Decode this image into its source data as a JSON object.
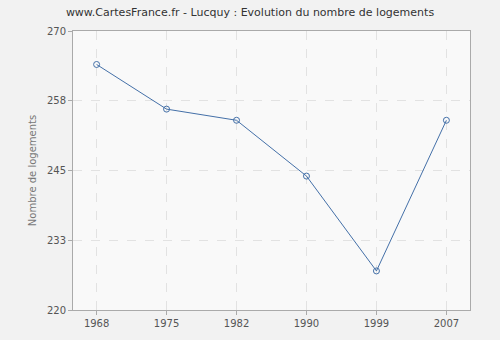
{
  "chart_data": {
    "type": "line",
    "title": "www.CartesFrance.fr - Lucquy : Evolution du nombre de logements",
    "y_label": "Nombre de logements",
    "categories": [
      "1968",
      "1975",
      "1982",
      "1990",
      "1999",
      "2007"
    ],
    "values": [
      264,
      256,
      254,
      244,
      227,
      254
    ],
    "color": "#4470a8",
    "marker": "circle",
    "ylim": [
      220,
      270
    ],
    "yticks": [
      220,
      {
        "value": 232.5,
        "label": "233"
      },
      245,
      {
        "value": 257.5,
        "label": "258"
      },
      270
    ],
    "grid": true
  }
}
